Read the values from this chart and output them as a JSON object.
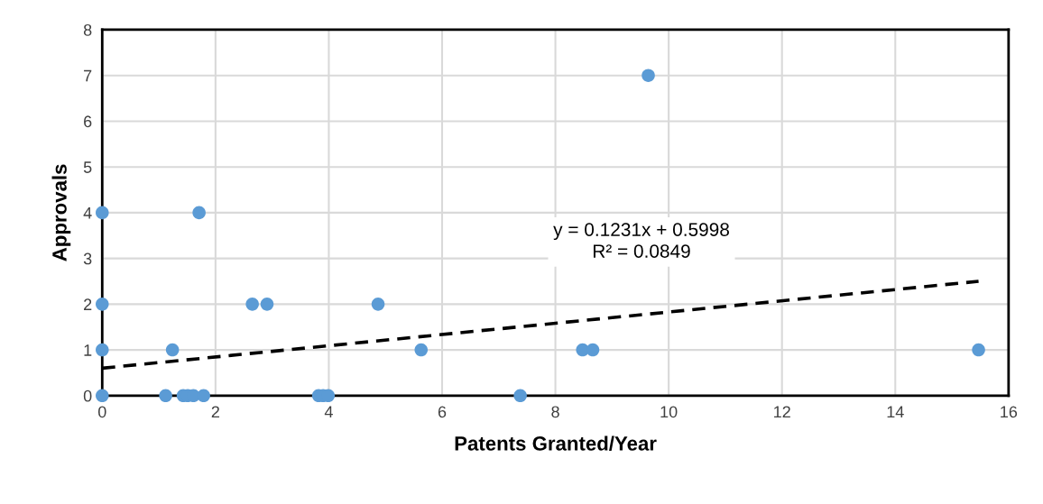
{
  "chart_data": {
    "type": "scatter",
    "xlabel": "Patents Granted/Year",
    "ylabel": "Approvals",
    "xlim": [
      0,
      16
    ],
    "xticks": [
      0,
      2,
      4,
      6,
      8,
      10,
      12,
      14,
      16
    ],
    "ylim": [
      0,
      8
    ],
    "yticks": [
      0,
      1,
      2,
      3,
      4,
      5,
      6,
      7,
      8
    ],
    "grid": true,
    "legend": false,
    "series": [
      {
        "color": "#5b9bd5",
        "marker": "circle",
        "x": [
          0,
          0,
          0,
          0,
          1.71,
          1.24,
          1.12,
          1.43,
          1.51,
          1.61,
          1.79,
          2.65,
          2.91,
          4.87,
          5.63,
          3.82,
          3.9,
          3.99,
          7.38,
          8.48,
          8.66,
          9.64,
          15.47
        ],
        "values": [
          4,
          2,
          1,
          0,
          4,
          1,
          0,
          0,
          0,
          0,
          0,
          2,
          2,
          2,
          1,
          0,
          0,
          0,
          0,
          1,
          1,
          7,
          1
        ]
      },
      {
        "type": "line",
        "color": "#000000",
        "line_style": "dashed",
        "marker": "none",
        "x": [
          0,
          15.47
        ],
        "values": [
          0.6,
          2.5
        ]
      }
    ],
    "annotations": [
      "y = 0.1231x + 0.5998",
      "R² = 0.0849"
    ]
  }
}
